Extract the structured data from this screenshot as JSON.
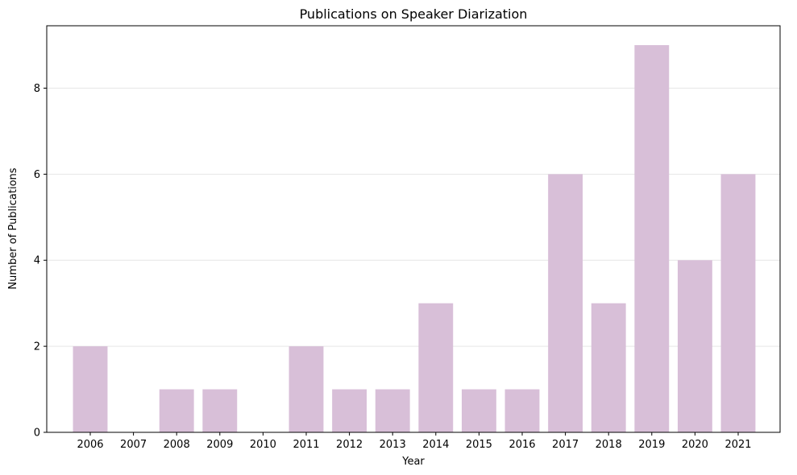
{
  "chart_data": {
    "type": "bar",
    "title": "Publications on Speaker Diarization",
    "xlabel": "Year",
    "ylabel": "Number of Publications",
    "categories": [
      "2006",
      "2007",
      "2008",
      "2009",
      "2010",
      "2011",
      "2012",
      "2013",
      "2014",
      "2015",
      "2016",
      "2017",
      "2018",
      "2019",
      "2020",
      "2021"
    ],
    "values": [
      2,
      0,
      1,
      1,
      0,
      2,
      1,
      1,
      3,
      1,
      1,
      6,
      3,
      9,
      4,
      6
    ],
    "ylim": [
      0,
      9.45
    ],
    "yticks": [
      0,
      2,
      4,
      6,
      8
    ],
    "grid": "horizontal",
    "bar_color": "#d8bfd8",
    "bar_edge_color": "#b58fb5"
  }
}
